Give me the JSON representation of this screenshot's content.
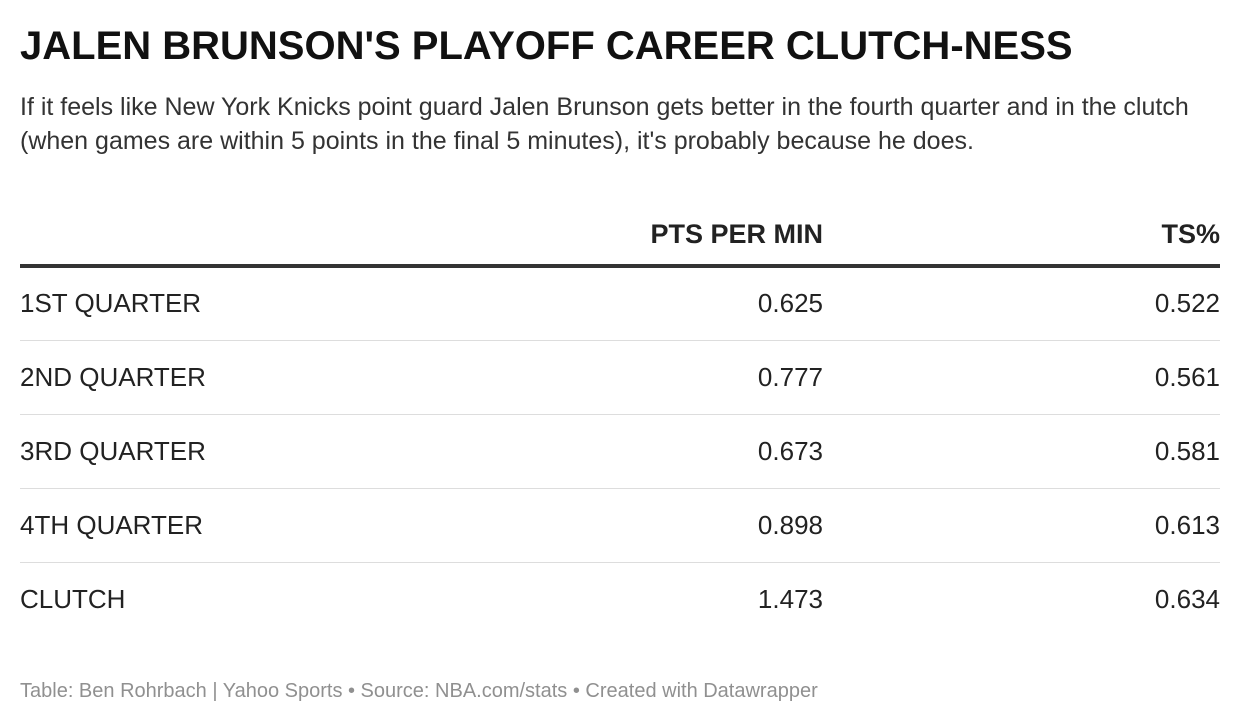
{
  "header": {
    "title": "JALEN BRUNSON'S PLAYOFF CAREER CLUTCH-NESS",
    "subtitle": "If it feels like New York Knicks point guard Jalen Brunson gets better in the fourth quarter and in the clutch (when games are within 5 points in the final 5 minutes), it's probably because he does."
  },
  "chart_data": {
    "type": "table",
    "columns": [
      "",
      "PTS PER MIN",
      "TS%"
    ],
    "rows": [
      {
        "label": "1ST QUARTER",
        "pts_per_min": "0.625",
        "ts_pct": "0.522"
      },
      {
        "label": "2ND QUARTER",
        "pts_per_min": "0.777",
        "ts_pct": "0.561"
      },
      {
        "label": "3RD QUARTER",
        "pts_per_min": "0.673",
        "ts_pct": "0.581"
      },
      {
        "label": "4TH QUARTER",
        "pts_per_min": "0.898",
        "ts_pct": "0.613"
      },
      {
        "label": "CLUTCH",
        "pts_per_min": "1.473",
        "ts_pct": "0.634"
      }
    ]
  },
  "footer": {
    "credit": "Table: Ben Rohrbach | Yahoo Sports • Source: NBA.com/stats • Created with Datawrapper"
  }
}
